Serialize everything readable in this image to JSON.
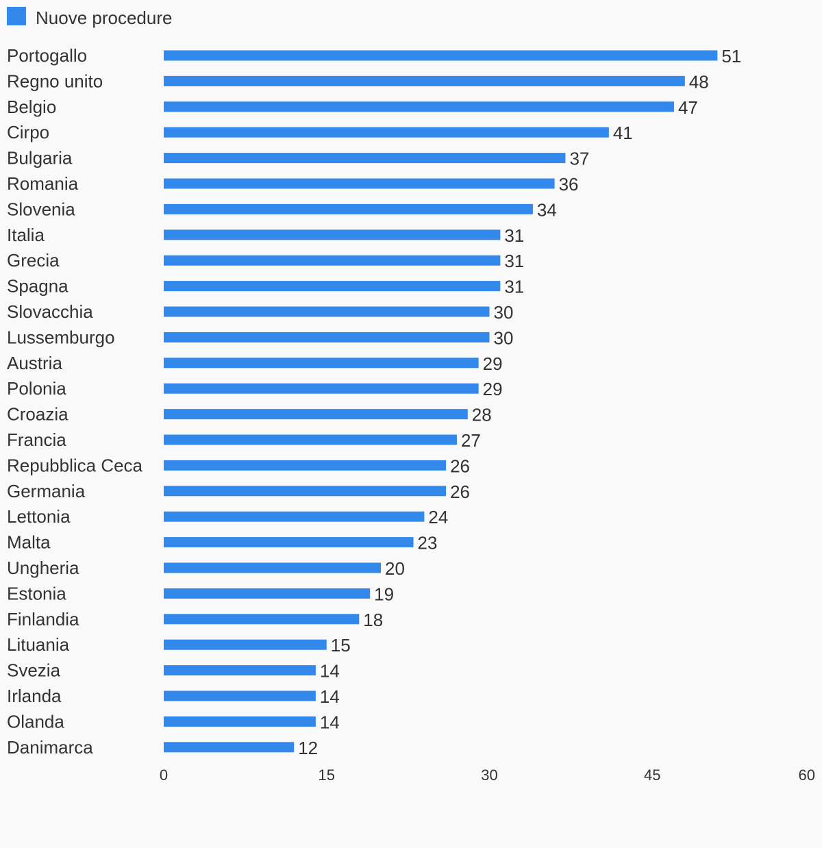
{
  "legend": {
    "label": "Nuove procedure"
  },
  "colors": {
    "bar": "#3388ec",
    "text": "#333333",
    "background": "#f9f9f9"
  },
  "chart_data": {
    "type": "bar",
    "orientation": "horizontal",
    "categories": [
      "Portogallo",
      "Regno unito",
      "Belgio",
      "Cirpo",
      "Bulgaria",
      "Romania",
      "Slovenia",
      "Italia",
      "Grecia",
      "Spagna",
      "Slovacchia",
      "Lussemburgo",
      "Austria",
      "Polonia",
      "Croazia",
      "Francia",
      "Repubblica Ceca",
      "Germania",
      "Lettonia",
      "Malta",
      "Ungheria",
      "Estonia",
      "Finlandia",
      "Lituania",
      "Svezia",
      "Irlanda",
      "Olanda",
      "Danimarca"
    ],
    "series": [
      {
        "name": "Nuove procedure",
        "values": [
          51,
          48,
          47,
          41,
          37,
          36,
          34,
          31,
          31,
          31,
          30,
          30,
          29,
          29,
          28,
          27,
          26,
          26,
          24,
          23,
          20,
          19,
          18,
          15,
          14,
          14,
          14,
          12
        ]
      }
    ],
    "xlim": [
      0,
      60
    ],
    "xticks": [
      0,
      15,
      30,
      45,
      60
    ],
    "grid": false,
    "legend_position": "top-left",
    "data_labels": true
  }
}
